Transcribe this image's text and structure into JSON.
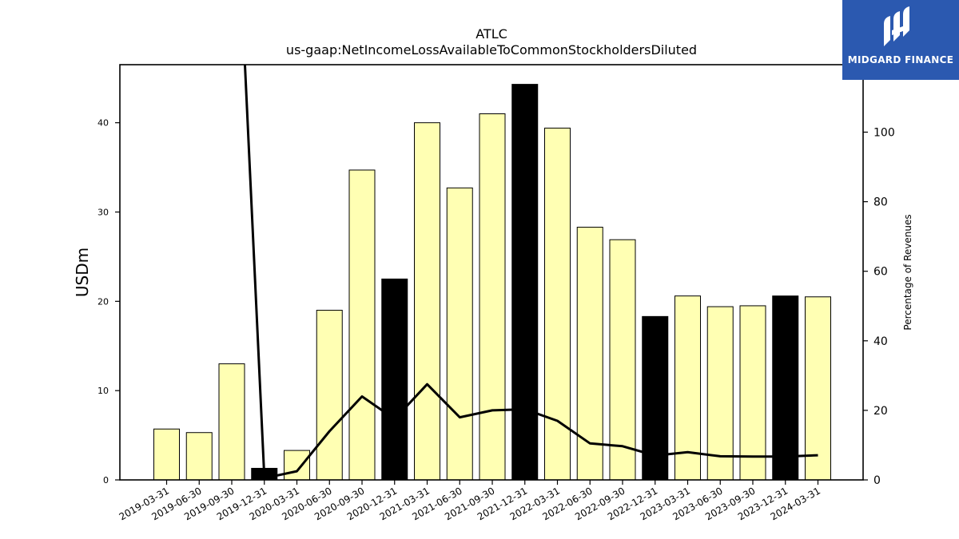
{
  "chart_data": {
    "type": "bar",
    "title": "ATLC",
    "subtitle": "us-gaap:NetIncomeLossAvailableToCommonStockholdersDiluted",
    "ylabel": "USDm",
    "ylabel_right": "Percentage of Revenues",
    "ylim": [
      0,
      46.5
    ],
    "ylim_right": [
      0,
      119.4
    ],
    "yticks": [
      0,
      10,
      20,
      30,
      40
    ],
    "yticks_right": [
      0,
      20,
      40,
      60,
      80,
      100
    ],
    "grid": false,
    "categories": [
      "2019-03-31",
      "2019-06-30",
      "2019-09-30",
      "2019-12-31",
      "2020-03-31",
      "2020-06-30",
      "2020-09-30",
      "2020-12-31",
      "2021-03-31",
      "2021-06-30",
      "2021-09-30",
      "2021-12-31",
      "2022-03-31",
      "2022-06-30",
      "2022-09-30",
      "2022-12-31",
      "2023-03-31",
      "2023-06-30",
      "2023-09-30",
      "2023-12-31",
      "2024-03-31"
    ],
    "series": [
      {
        "kind": "bar",
        "values": [
          5.7,
          5.3,
          13.0,
          1.3,
          3.3,
          19.0,
          34.7,
          22.5,
          40.0,
          32.7,
          41.0,
          44.3,
          39.4,
          28.3,
          26.9,
          18.3,
          20.6,
          19.4,
          19.5,
          20.6,
          20.5
        ],
        "highlight": [
          false,
          false,
          false,
          true,
          false,
          false,
          false,
          true,
          false,
          false,
          false,
          true,
          false,
          false,
          false,
          true,
          false,
          false,
          false,
          true,
          false
        ],
        "color": "#ffffb3",
        "highlight_color": "#000000"
      },
      {
        "kind": "line",
        "axis": "right",
        "values": [
          null,
          null,
          200,
          0.5,
          2.5,
          14,
          24,
          17.5,
          27.5,
          18,
          20,
          20.3,
          17,
          10.5,
          9.7,
          7,
          8,
          6.8,
          6.7,
          6.7,
          7.1
        ],
        "color": "#000000"
      }
    ]
  },
  "logo": {
    "text": "MIDGARD FINANCE",
    "icon": "midgard-logo-icon",
    "color": "#2b59b0"
  }
}
